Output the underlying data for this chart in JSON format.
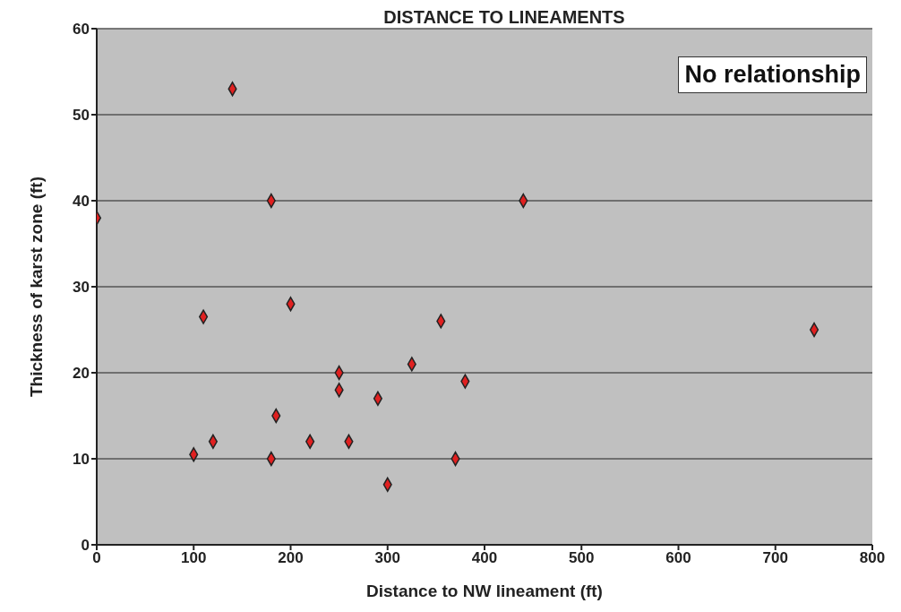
{
  "chart_data": {
    "type": "scatter",
    "title": "DISTANCE TO LINEAMENTS",
    "xlabel": "Distance to NW lineament (ft)",
    "ylabel": "Thickness of karst zone (ft)",
    "annotations": [
      "No relationship"
    ],
    "x": [
      0,
      140,
      180,
      440,
      110,
      200,
      355,
      740,
      250,
      250,
      325,
      380,
      290,
      185,
      100,
      120,
      180,
      220,
      260,
      370,
      300
    ],
    "series": [
      {
        "color": "#e02020",
        "values": [
          38,
          53,
          40,
          40,
          26.5,
          28,
          26,
          25,
          20,
          18,
          21,
          19,
          17,
          15,
          10.5,
          12,
          10,
          12,
          12,
          10,
          7
        ]
      }
    ],
    "xlim": [
      0,
      800
    ],
    "xticks": [
      0,
      100,
      200,
      300,
      400,
      500,
      600,
      700,
      800
    ],
    "ylim": [
      0,
      60
    ],
    "yticks": [
      0,
      10,
      20,
      30,
      40,
      50,
      60
    ],
    "grid": "y",
    "legend": false,
    "marker": "diamond"
  }
}
